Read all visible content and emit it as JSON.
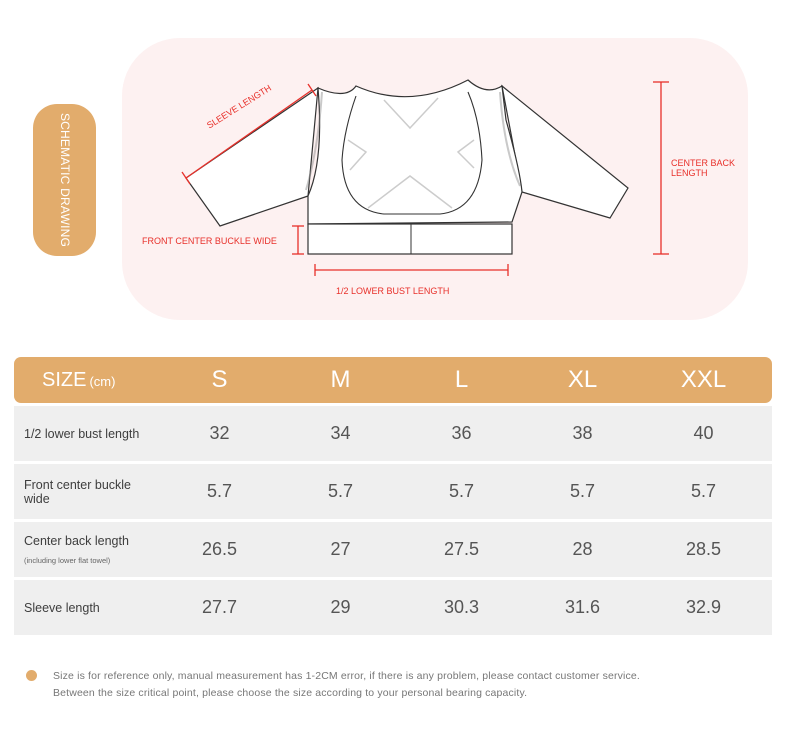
{
  "side_tag": "SCHEMATIC DRAWING",
  "diagram": {
    "sleeve_length": "SLEEVE LENGTH",
    "front_center_buckle_wide": "FRONT CENTER BUCKLE WIDE",
    "lower_bust_length": "1/2 LOWER BUST LENGTH",
    "center_back_length": "CENTER BACK LENGTH",
    "accent_color": "#e8302a"
  },
  "table": {
    "header_label": "SIZE",
    "header_unit": "(cm)",
    "sizes": [
      "S",
      "M",
      "L",
      "XL",
      "XXL"
    ],
    "rows": [
      {
        "label": "1/2 lower bust length",
        "note": "",
        "values": [
          "32",
          "34",
          "36",
          "38",
          "40"
        ]
      },
      {
        "label": "Front center buckle wide",
        "note": "",
        "values": [
          "5.7",
          "5.7",
          "5.7",
          "5.7",
          "5.7"
        ]
      },
      {
        "label": "Center back length",
        "note": "(including lower flat towel)",
        "values": [
          "26.5",
          "27",
          "27.5",
          "28",
          "28.5"
        ]
      },
      {
        "label": "Sleeve length",
        "note": "",
        "values": [
          "27.7",
          "29",
          "30.3",
          "31.6",
          "32.9"
        ]
      }
    ]
  },
  "notes": [
    "Size is for reference only, manual measurement has 1-2CM error, if there is any problem, please contact customer service.",
    "Between the size critical point, please choose the size according to your personal bearing capacity."
  ],
  "colors": {
    "brand": "#e2ac6c",
    "row_bg": "#efefef",
    "diagram_bg": "#fdf1f1"
  }
}
